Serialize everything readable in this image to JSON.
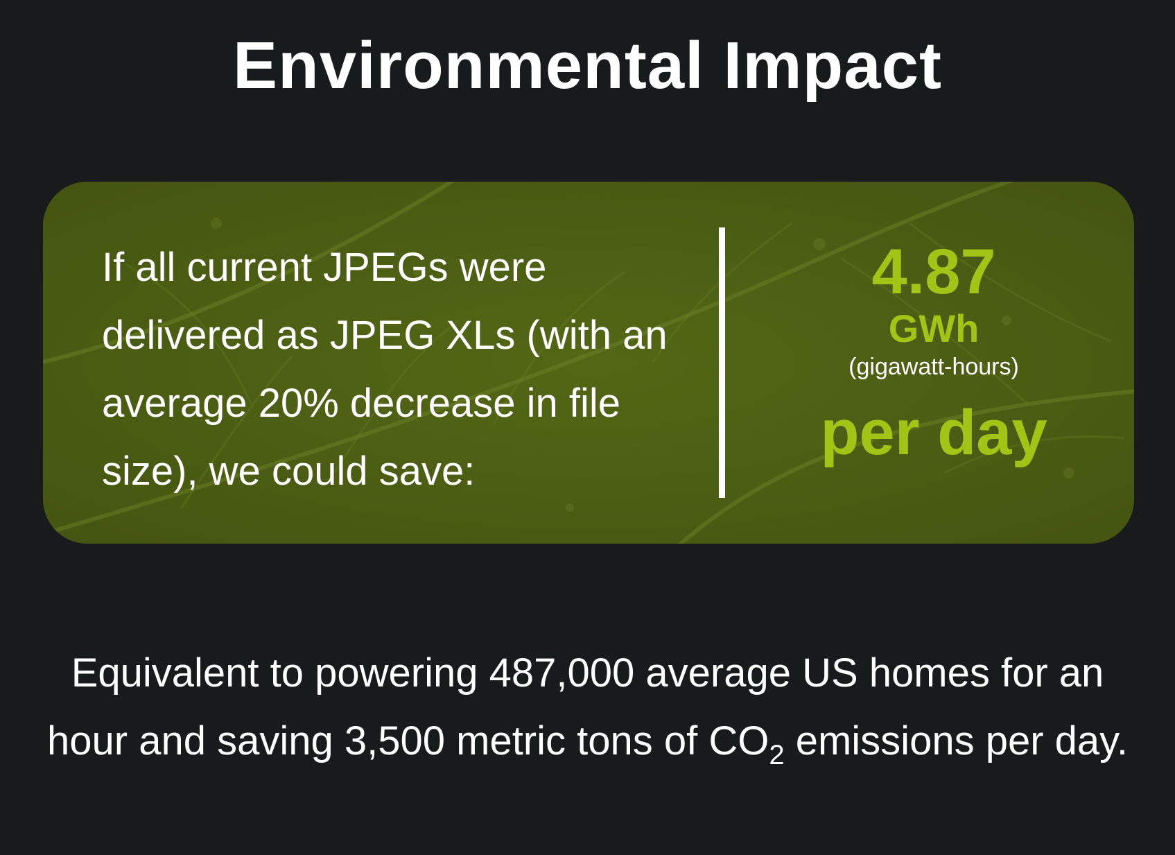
{
  "header": {
    "title": "Environmental Impact"
  },
  "impact_card": {
    "description": "If all current JPEGs were delivered as JPEG XLs (with an average 20% decrease in file size), we could save:",
    "value": "4.87",
    "unit": "GWh",
    "unit_description": "(gigawatt-hours)",
    "period": "per day"
  },
  "equivalence": {
    "text_before_co2": "Equivalent to powering 487,000 average US homes for an hour and saving 3,500 metric tons of CO",
    "co2_subscript": "2",
    "text_after_co2": " emissions per day."
  },
  "colors": {
    "background": "#191a1c",
    "card_green": "#4b5d12",
    "accent_green": "#a2c417",
    "text": "#ffffff"
  }
}
